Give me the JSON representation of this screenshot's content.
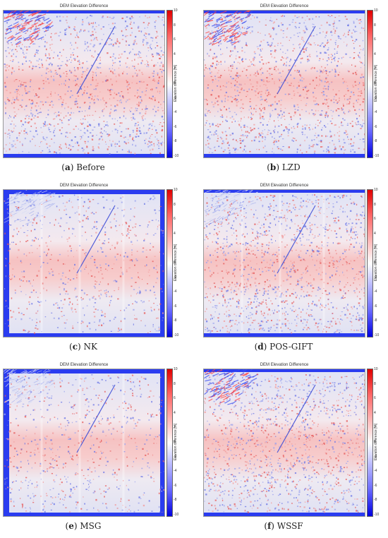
{
  "colorbar": {
    "label": "Elevation difference [m]",
    "ticks": [
      "10",
      "8",
      "6",
      "4",
      "2",
      "0",
      "-2",
      "-4",
      "-6",
      "-8",
      "-10"
    ],
    "colors": {
      "max": "#e00000",
      "zero": "#ffffff",
      "min": "#0000e0"
    }
  },
  "panels": [
    {
      "title": "DEM Elevation Difference",
      "letter": "a",
      "name": "Before"
    },
    {
      "title": "DEM Elevation Difference",
      "letter": "b",
      "name": "LZD"
    },
    {
      "title": "DEM Elevation Difference",
      "letter": "c",
      "name": "NK"
    },
    {
      "title": "DEM Elevation Difference",
      "letter": "d",
      "name": "POS-GIFT"
    },
    {
      "title": "DEM Elevation Difference",
      "letter": "e",
      "name": "MSG"
    },
    {
      "title": "DEM Elevation Difference",
      "letter": "f",
      "name": "WSSF"
    }
  ]
}
